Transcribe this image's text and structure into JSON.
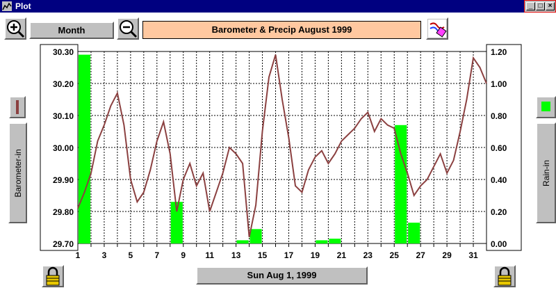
{
  "window": {
    "title": "Plot",
    "icon": "plot-app-icon"
  },
  "controls": {
    "zoom_in_icon": "zoom-in-icon",
    "period_label": "Month",
    "zoom_out_icon": "zoom-out-icon",
    "chart_title": "Barometer & Precip   August 1999",
    "options_icon": "paint-options-icon",
    "left_axis_button": "Barometer-in",
    "right_axis_button": "Rain-in",
    "date_button": "Sun Aug 1, 1999",
    "line_color_swatch": "#8b4040",
    "bar_color_swatch": "#00ff00"
  },
  "chart_data": {
    "type": "bar+line",
    "title": "Barometer & Precip   August 1999",
    "x_tick_labels": [
      "1",
      "3",
      "5",
      "7",
      "9",
      "11",
      "13",
      "15",
      "17",
      "19",
      "21",
      "23",
      "25",
      "27",
      "29",
      "31"
    ],
    "xlim": [
      1,
      32
    ],
    "left_axis": {
      "label": "Barometer-in",
      "ylim": [
        29.7,
        30.3
      ],
      "ticks": [
        "30.30",
        "30.20",
        "30.10",
        "30.00",
        "29.90",
        "29.80",
        "29.70"
      ]
    },
    "right_axis": {
      "label": "Rain-in",
      "ylim": [
        0.0,
        1.2
      ],
      "ticks": [
        "1.20",
        "1.00",
        "0.80",
        "0.60",
        "0.40",
        "0.20",
        "0.00"
      ]
    },
    "colors": {
      "line": "#8b4040",
      "bars": "#00ff00"
    },
    "grid": true,
    "series": [
      {
        "name": "Rain-in",
        "type": "bar",
        "x": [
          1.5,
          8.5,
          13.5,
          14.5,
          19.5,
          20.5,
          25.5,
          26.5
        ],
        "values": [
          1.18,
          0.26,
          0.02,
          0.09,
          0.02,
          0.03,
          0.74,
          0.13
        ]
      },
      {
        "name": "Barometer-in",
        "type": "line",
        "x": [
          1.0,
          1.5,
          2.0,
          2.5,
          3.0,
          3.5,
          4.0,
          4.5,
          5.0,
          5.5,
          6.0,
          6.5,
          7.0,
          7.5,
          8.0,
          8.5,
          9.0,
          9.5,
          10.0,
          10.5,
          11.0,
          11.5,
          12.0,
          12.5,
          13.0,
          13.5,
          14.0,
          14.5,
          15.0,
          15.5,
          16.0,
          16.5,
          17.0,
          17.5,
          18.0,
          18.5,
          19.0,
          19.5,
          20.0,
          20.5,
          21.0,
          21.5,
          22.0,
          22.5,
          23.0,
          23.5,
          24.0,
          24.5,
          25.0,
          25.5,
          26.0,
          26.5,
          27.0,
          27.5,
          28.0,
          28.5,
          29.0,
          29.5,
          30.0,
          30.5,
          31.0,
          31.5,
          32.0
        ],
        "values": [
          29.81,
          29.86,
          29.92,
          30.02,
          30.07,
          30.13,
          30.17,
          30.07,
          29.9,
          29.83,
          29.86,
          29.93,
          30.02,
          30.08,
          29.98,
          29.8,
          29.9,
          29.95,
          29.88,
          29.92,
          29.8,
          29.86,
          29.92,
          30.0,
          29.98,
          29.95,
          29.72,
          29.82,
          30.05,
          30.22,
          30.29,
          30.15,
          30.03,
          29.88,
          29.86,
          29.93,
          29.97,
          29.99,
          29.95,
          29.98,
          30.02,
          30.04,
          30.06,
          30.09,
          30.11,
          30.05,
          30.09,
          30.07,
          30.06,
          29.98,
          29.92,
          29.85,
          29.88,
          29.9,
          29.94,
          29.98,
          29.92,
          29.96,
          30.05,
          30.15,
          30.28,
          30.25,
          30.2
        ]
      }
    ]
  }
}
